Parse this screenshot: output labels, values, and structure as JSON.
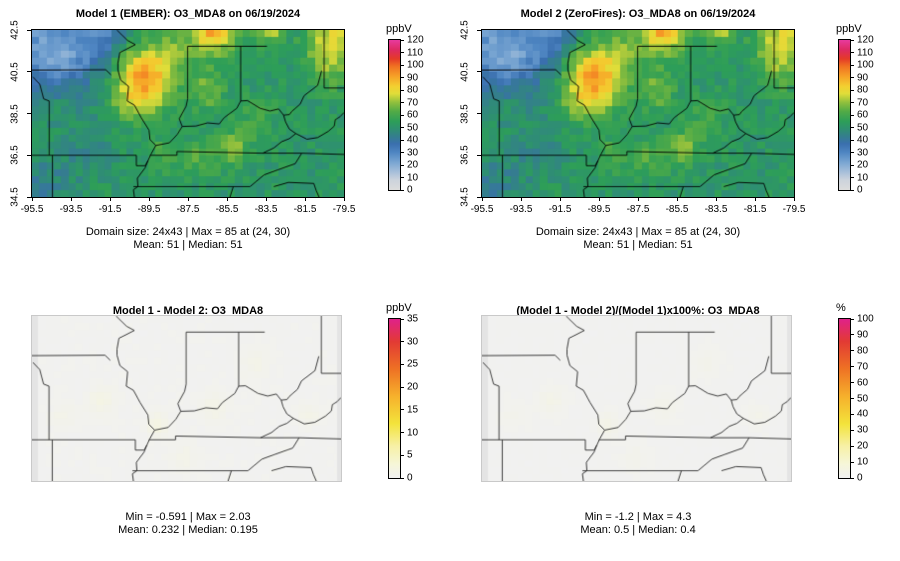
{
  "figure": {
    "background": "#ffffff",
    "text_color": "#000000"
  },
  "panels": [
    {
      "title": "Model 1 (EMBER): O3_MDA8 on 06/19/2024",
      "caption": [
        "Domain size: 24x43 | Max = 85 at (24, 30)",
        "Mean: 51 | Median: 51"
      ],
      "axes": {
        "x_ticks": [
          -95.5,
          -93.5,
          -91.5,
          -89.5,
          -87.5,
          -85.5,
          -83.5,
          -81.5,
          -79.5
        ],
        "y_ticks": [
          42.5,
          40.5,
          38.5,
          36.5,
          34.5
        ]
      },
      "colorbar": {
        "unit": "ppbV",
        "min": 0,
        "max": 120,
        "ticks": [
          0,
          10,
          20,
          30,
          40,
          50,
          60,
          70,
          80,
          90,
          100,
          110,
          120
        ]
      }
    },
    {
      "title": "Model 2 (ZeroFires): O3_MDA8 on 06/19/2024",
      "caption": [
        "Domain size: 24x43 | Max = 85 at (24, 30)",
        "Mean: 51 | Median: 51"
      ],
      "axes": {
        "x_ticks": [
          -95.5,
          -93.5,
          -91.5,
          -89.5,
          -87.5,
          -85.5,
          -83.5,
          -81.5,
          -79.5
        ],
        "y_ticks": [
          42.5,
          40.5,
          38.5,
          36.5,
          34.5
        ]
      },
      "colorbar": {
        "unit": "ppbV",
        "min": 0,
        "max": 120,
        "ticks": [
          0,
          10,
          20,
          30,
          40,
          50,
          60,
          70,
          80,
          90,
          100,
          110,
          120
        ]
      }
    },
    {
      "title": "Model 1 - Model 2: O3_MDA8",
      "caption": [
        "Min = -0.591 | Max = 2.03",
        "Mean: 0.232 | Median: 0.195"
      ],
      "axes": null,
      "colorbar": {
        "unit": "ppbV",
        "min": 0,
        "max": 35,
        "ticks": [
          0,
          5,
          10,
          15,
          20,
          25,
          30,
          35
        ]
      }
    },
    {
      "title": "(Model 1 - Model 2)/(Model 1)x100%: O3_MDA8",
      "caption": [
        "Min = -1.2 | Max = 4.3",
        "Mean: 0.5 | Median: 0.4"
      ],
      "axes": null,
      "colorbar": {
        "unit": "%",
        "min": 0,
        "max": 100,
        "ticks": [
          0,
          10,
          20,
          30,
          40,
          50,
          60,
          70,
          80,
          90,
          100
        ]
      }
    }
  ],
  "chart_data": [
    {
      "type": "heatmap",
      "title": "Model 1 (EMBER): O3_MDA8 on 06/19/2024",
      "variable": "O3_MDA8",
      "model": "Model 1 (EMBER)",
      "date": "06/19/2024",
      "units": "ppbV",
      "colorbar_position": "right",
      "domain": {
        "nrows": 24,
        "ncols": 43,
        "lon_range": [
          -95.5,
          -79.5
        ],
        "lat_range": [
          34.5,
          42.5
        ]
      },
      "stats": {
        "domain_size": "24x43",
        "max": 85,
        "max_at": [
          24,
          30
        ],
        "mean": 51,
        "median": 51
      },
      "color_scale": {
        "min": 0,
        "max": 120,
        "stops": [
          [
            0,
            "#dcdcdc"
          ],
          [
            8,
            "#ccd3dc"
          ],
          [
            14,
            "#a9c0da"
          ],
          [
            22,
            "#7aa6d2"
          ],
          [
            30,
            "#4f86c2"
          ],
          [
            37,
            "#3a6fae"
          ],
          [
            43,
            "#347e8d"
          ],
          [
            49,
            "#2e9070"
          ],
          [
            55,
            "#2d9e58"
          ],
          [
            63,
            "#53ab46"
          ],
          [
            70,
            "#8fbf3d"
          ],
          [
            77,
            "#e0dd39"
          ],
          [
            83,
            "#f3cf30"
          ],
          [
            91,
            "#f6a127"
          ],
          [
            99,
            "#f07122"
          ],
          [
            105,
            "#e43a28"
          ],
          [
            112,
            "#dd2a60"
          ],
          [
            120,
            "#e83a9e"
          ]
        ]
      },
      "boundary_color": "#000000",
      "field": {
        "base": 52,
        "noise": 5,
        "blobs": [
          [
            -95.2,
            42.4,
            -20,
            1.5
          ],
          [
            -93.0,
            41.5,
            -16,
            1.3
          ],
          [
            -91.6,
            42.4,
            -12,
            0.9
          ],
          [
            -94.6,
            40.6,
            -10,
            1.0
          ],
          [
            -90.1,
            40.6,
            26,
            0.9
          ],
          [
            -89.4,
            39.6,
            22,
            0.8
          ],
          [
            -90.6,
            39.0,
            14,
            0.7
          ],
          [
            -88.5,
            41.2,
            16,
            0.8
          ],
          [
            -86.2,
            42.7,
            40,
            0.9
          ],
          [
            -83.3,
            42.7,
            30,
            0.5
          ],
          [
            -80.1,
            42.2,
            24,
            0.9
          ],
          [
            -80.3,
            40.7,
            12,
            0.8
          ],
          [
            -86.6,
            39.6,
            14,
            0.7
          ],
          [
            -85.2,
            36.8,
            16,
            0.6
          ],
          [
            -86.9,
            36.4,
            10,
            0.6
          ],
          [
            -88.8,
            36.6,
            9,
            0.6
          ],
          [
            -94.9,
            35.0,
            -9,
            0.9
          ],
          [
            -92.8,
            36.8,
            -6,
            1.0
          ],
          [
            -84.0,
            38.2,
            6,
            0.8
          ]
        ]
      }
    },
    {
      "type": "heatmap",
      "title": "Model 2 (ZeroFires): O3_MDA8 on 06/19/2024",
      "variable": "O3_MDA8",
      "model": "Model 2 (ZeroFires)",
      "date": "06/19/2024",
      "units": "ppbV",
      "colorbar_position": "right",
      "domain": {
        "nrows": 24,
        "ncols": 43,
        "lon_range": [
          -95.5,
          -79.5
        ],
        "lat_range": [
          34.5,
          42.5
        ]
      },
      "stats": {
        "domain_size": "24x43",
        "max": 85,
        "max_at": [
          24,
          30
        ],
        "mean": 51,
        "median": 51
      },
      "color_scale": {
        "min": 0,
        "max": 120,
        "stops": [
          [
            0,
            "#dcdcdc"
          ],
          [
            8,
            "#ccd3dc"
          ],
          [
            14,
            "#a9c0da"
          ],
          [
            22,
            "#7aa6d2"
          ],
          [
            30,
            "#4f86c2"
          ],
          [
            37,
            "#3a6fae"
          ],
          [
            43,
            "#347e8d"
          ],
          [
            49,
            "#2e9070"
          ],
          [
            55,
            "#2d9e58"
          ],
          [
            63,
            "#53ab46"
          ],
          [
            70,
            "#8fbf3d"
          ],
          [
            77,
            "#e0dd39"
          ],
          [
            83,
            "#f3cf30"
          ],
          [
            91,
            "#f6a127"
          ],
          [
            99,
            "#f07122"
          ],
          [
            105,
            "#e43a28"
          ],
          [
            112,
            "#dd2a60"
          ],
          [
            120,
            "#e83a9e"
          ]
        ]
      },
      "boundary_color": "#000000",
      "field": {
        "base": 52,
        "noise": 5,
        "blobs": [
          [
            -95.2,
            42.4,
            -20,
            1.5
          ],
          [
            -93.0,
            41.5,
            -16,
            1.3
          ],
          [
            -91.6,
            42.4,
            -12,
            0.9
          ],
          [
            -94.6,
            40.6,
            -10,
            1.0
          ],
          [
            -90.1,
            40.6,
            26,
            0.9
          ],
          [
            -89.4,
            39.6,
            22,
            0.8
          ],
          [
            -90.6,
            39.0,
            14,
            0.7
          ],
          [
            -88.5,
            41.2,
            16,
            0.8
          ],
          [
            -86.2,
            42.7,
            40,
            0.9
          ],
          [
            -83.3,
            42.7,
            30,
            0.5
          ],
          [
            -80.1,
            42.2,
            24,
            0.9
          ],
          [
            -80.3,
            40.7,
            12,
            0.8
          ],
          [
            -86.6,
            39.6,
            14,
            0.7
          ],
          [
            -85.2,
            36.8,
            16,
            0.6
          ],
          [
            -86.9,
            36.4,
            10,
            0.6
          ],
          [
            -88.8,
            36.6,
            9,
            0.6
          ],
          [
            -94.9,
            35.0,
            -9,
            0.9
          ],
          [
            -92.8,
            36.8,
            -6,
            1.0
          ],
          [
            -84.0,
            38.2,
            6,
            0.8
          ]
        ]
      }
    },
    {
      "type": "heatmap",
      "title": "Model 1 - Model 2: O3_MDA8",
      "variable": "O3_MDA8 difference",
      "units": "ppbV",
      "colorbar_position": "right",
      "domain": {
        "nrows": 24,
        "ncols": 43,
        "lon_range": [
          -95.5,
          -79.5
        ],
        "lat_range": [
          34.5,
          42.5
        ]
      },
      "stats": {
        "min": -0.591,
        "max": 2.03,
        "mean": 0.232,
        "median": 0.195
      },
      "color_scale": {
        "min": 0,
        "max": 35,
        "stops": [
          [
            0,
            "#f1f1f1"
          ],
          [
            3,
            "#f6f6d8"
          ],
          [
            7,
            "#f7f0a6"
          ],
          [
            12,
            "#f3e33b"
          ],
          [
            18,
            "#f6b12c"
          ],
          [
            24,
            "#ee7124"
          ],
          [
            30,
            "#e23a34"
          ],
          [
            35,
            "#e0218a"
          ]
        ]
      },
      "boundary_color": "#2a2a2a",
      "edge_band": true,
      "field": {
        "base": 0.2,
        "noise": 0.15,
        "blobs": [
          [
            -91.9,
            38.4,
            1.3,
            0.5
          ],
          [
            -89.0,
            37.2,
            1.6,
            0.4
          ],
          [
            -86.1,
            38.1,
            1.1,
            0.5
          ],
          [
            -83.9,
            40.2,
            0.9,
            0.5
          ],
          [
            -81.2,
            37.6,
            1.0,
            0.4
          ],
          [
            -87.6,
            35.6,
            0.8,
            0.5
          ],
          [
            -93.9,
            37.6,
            0.7,
            0.5
          ]
        ]
      }
    },
    {
      "type": "heatmap",
      "title": "(Model 1 - Model 2)/(Model 1)x100%: O3_MDA8",
      "variable": "O3_MDA8 relative difference",
      "units": "%",
      "colorbar_position": "right",
      "domain": {
        "nrows": 24,
        "ncols": 43,
        "lon_range": [
          -95.5,
          -79.5
        ],
        "lat_range": [
          34.5,
          42.5
        ]
      },
      "stats": {
        "min": -1.2,
        "max": 4.3,
        "mean": 0.5,
        "median": 0.4
      },
      "color_scale": {
        "min": 0,
        "max": 100,
        "stops": [
          [
            0,
            "#f1f1f1"
          ],
          [
            9,
            "#f6f6d8"
          ],
          [
            20,
            "#f7f0a6"
          ],
          [
            34,
            "#f3e33b"
          ],
          [
            51,
            "#f6b12c"
          ],
          [
            69,
            "#ee7124"
          ],
          [
            86,
            "#e23a34"
          ],
          [
            100,
            "#e0218a"
          ]
        ]
      },
      "boundary_color": "#2a2a2a",
      "edge_band": true,
      "field": {
        "base": 0.5,
        "noise": 0.35,
        "blobs": [
          [
            -91.9,
            38.4,
            2.8,
            0.5
          ],
          [
            -89.0,
            37.2,
            3.6,
            0.4
          ],
          [
            -86.1,
            38.1,
            2.4,
            0.5
          ],
          [
            -83.9,
            40.2,
            2.0,
            0.5
          ],
          [
            -81.2,
            37.6,
            2.2,
            0.4
          ],
          [
            -87.6,
            35.6,
            1.8,
            0.5
          ],
          [
            -93.9,
            37.6,
            1.5,
            0.5
          ]
        ]
      }
    }
  ],
  "map_boundaries": [
    [
      [
        -91.15,
        42.5
      ],
      [
        -90.6,
        42.0
      ],
      [
        -90.2,
        41.8
      ],
      [
        -91.0,
        41.42
      ],
      [
        -91.1,
        40.9
      ],
      [
        -91.1,
        40.6
      ],
      [
        -90.95,
        40.1
      ],
      [
        -90.55,
        39.8
      ],
      [
        -90.62,
        39.1
      ],
      [
        -90.25,
        38.9
      ],
      [
        -89.9,
        38.3
      ],
      [
        -89.5,
        37.7
      ],
      [
        -89.45,
        37.25
      ],
      [
        -89.15,
        36.97
      ]
    ],
    [
      [
        -89.15,
        36.97
      ],
      [
        -89.4,
        36.55
      ],
      [
        -89.55,
        36.25
      ],
      [
        -89.7,
        35.9
      ],
      [
        -90.1,
        35.4
      ],
      [
        -90.07,
        35.0
      ],
      [
        -90.3,
        34.85
      ],
      [
        -90.25,
        34.5
      ]
    ],
    [
      [
        -95.5,
        40.58
      ],
      [
        -91.72,
        40.6
      ],
      [
        -91.45,
        40.35
      ]
    ],
    [
      [
        -89.15,
        36.97
      ],
      [
        -88.45,
        37.1
      ],
      [
        -88.05,
        37.5
      ],
      [
        -87.8,
        37.88
      ],
      [
        -87.1,
        37.9
      ],
      [
        -86.5,
        38.05
      ],
      [
        -85.9,
        38.0
      ],
      [
        -85.65,
        38.3
      ],
      [
        -85.0,
        38.75
      ],
      [
        -84.8,
        39.1
      ],
      [
        -84.45,
        39.12
      ],
      [
        -83.8,
        38.75
      ],
      [
        -83.3,
        38.62
      ],
      [
        -82.85,
        38.72
      ],
      [
        -82.6,
        38.42
      ],
      [
        -82.3,
        38.45
      ],
      [
        -82.18,
        38.6
      ],
      [
        -81.75,
        38.95
      ],
      [
        -81.55,
        39.35
      ],
      [
        -80.85,
        39.85
      ],
      [
        -80.65,
        40.55
      ]
    ],
    [
      [
        -87.52,
        41.72
      ],
      [
        -87.52,
        39.2
      ],
      [
        -87.6,
        38.85
      ],
      [
        -87.95,
        38.25
      ],
      [
        -87.8,
        37.88
      ]
    ],
    [
      [
        -84.8,
        41.72
      ],
      [
        -84.8,
        39.1
      ]
    ],
    [
      [
        -87.52,
        41.72
      ],
      [
        -83.45,
        41.72
      ]
    ],
    [
      [
        -89.45,
        36.5
      ],
      [
        -88.07,
        36.5
      ],
      [
        -88.07,
        36.68
      ],
      [
        -83.67,
        36.6
      ]
    ],
    [
      [
        -83.67,
        36.6
      ],
      [
        -81.67,
        36.6
      ],
      [
        -79.5,
        36.54
      ]
    ],
    [
      [
        -90.3,
        35.0
      ],
      [
        -84.32,
        35.0
      ]
    ],
    [
      [
        -84.32,
        35.0
      ],
      [
        -83.6,
        35.56
      ],
      [
        -82.9,
        35.8
      ],
      [
        -82.0,
        36.1
      ],
      [
        -81.67,
        36.6
      ]
    ],
    [
      [
        -95.5,
        36.5
      ],
      [
        -90.15,
        36.5
      ],
      [
        -90.15,
        36.0
      ],
      [
        -89.7,
        36.0
      ],
      [
        -89.55,
        36.25
      ]
    ],
    [
      [
        -94.62,
        36.5
      ],
      [
        -94.62,
        39.1
      ],
      [
        -94.9,
        39.2
      ],
      [
        -95.1,
        39.9
      ],
      [
        -95.45,
        40.25
      ]
    ],
    [
      [
        -94.45,
        36.5
      ],
      [
        -94.45,
        34.5
      ]
    ],
    [
      [
        -83.67,
        36.6
      ],
      [
        -83.1,
        36.85
      ],
      [
        -82.7,
        37.15
      ],
      [
        -82.3,
        37.3
      ],
      [
        -81.97,
        37.54
      ]
    ],
    [
      [
        -81.97,
        37.54
      ],
      [
        -82.3,
        37.75
      ],
      [
        -82.5,
        38.1
      ],
      [
        -82.6,
        38.42
      ]
    ],
    [
      [
        -81.97,
        37.54
      ],
      [
        -81.4,
        37.27
      ],
      [
        -80.85,
        37.35
      ],
      [
        -80.3,
        37.65
      ],
      [
        -80.0,
        37.9
      ],
      [
        -79.95,
        38.2
      ],
      [
        -79.7,
        38.35
      ],
      [
        -79.5,
        38.55
      ]
    ],
    [
      [
        -80.52,
        42.5
      ],
      [
        -80.52,
        39.72
      ],
      [
        -79.5,
        39.72
      ]
    ],
    [
      [
        -83.1,
        35.0
      ],
      [
        -82.35,
        35.2
      ],
      [
        -81.05,
        35.15
      ],
      [
        -80.93,
        34.82
      ],
      [
        -80.78,
        34.5
      ]
    ],
    [
      [
        -85.18,
        35.0
      ],
      [
        -85.35,
        34.5
      ]
    ]
  ]
}
